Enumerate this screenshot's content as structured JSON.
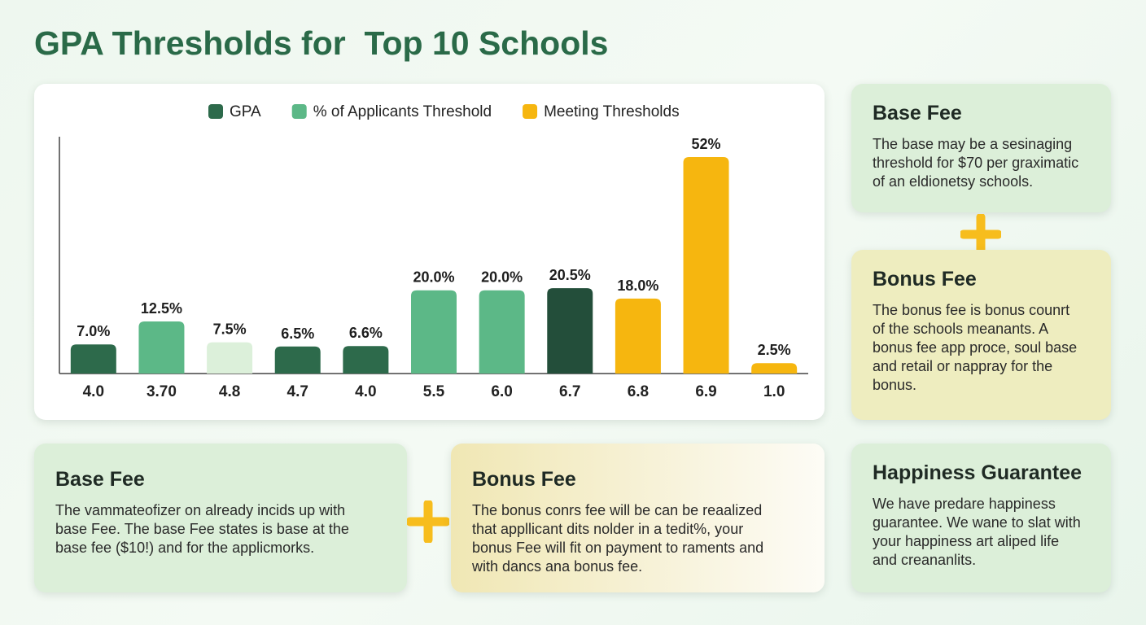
{
  "chart_data": {
    "type": "bar",
    "title": "GPA Thresholds for  Top 10 Schools",
    "categories": [
      "4.0",
      "3.70",
      "4.8",
      "4.7",
      "4.0",
      "5.5",
      "6.0",
      "6.7",
      "6.8",
      "6.9",
      "1.0"
    ],
    "values": [
      7.0,
      12.5,
      7.5,
      6.5,
      6.6,
      20.0,
      20.0,
      20.5,
      18.0,
      52,
      2.5
    ],
    "value_labels": [
      "7.0%",
      "12.5%",
      "7.5%",
      "6.5%",
      "6.6%",
      "20.0%",
      "20.0%",
      "20.5%",
      "18.0%",
      "52%",
      "2.5%"
    ],
    "colors": [
      "#2d6a4b",
      "#5cb887",
      "#dcf0da",
      "#2d6a4b",
      "#2d6a4b",
      "#5cb887",
      "#5cb887",
      "#234e3a",
      "#f6b60f",
      "#f6b60f",
      "#f6b60f"
    ],
    "legend": [
      {
        "name": "GPA",
        "color": "#2d6a4b"
      },
      {
        "name": "% of Applicants Threshold",
        "color": "#5cb887"
      },
      {
        "name": "Meeting Thresholds",
        "color": "#f6b60f"
      }
    ]
  },
  "cards": [
    {
      "title": "Base Fee",
      "lines": [
        "The base may be a sesinaging",
        "threshold for $70 per graximatic",
        "of an eldionetsy schools."
      ]
    },
    {
      "title": "Bonus Fee",
      "lines": [
        "The bonus fee is bonus counrt",
        "of the schools meanants. A",
        "bonus fee app proce, soul base",
        "and retail or nappray for the",
        "bonus."
      ]
    },
    {
      "title": "Base Fee",
      "lines": [
        "The vammateofizer on already incids up with",
        "base Fee. The base Fee states is base at the",
        "base fee ($10!) and for the applicmorks."
      ]
    },
    {
      "title": "Bonus Fee",
      "lines": [
        "The bonus conrs fee will be can be reaalized",
        "that appllicant dits nolder in a tedit%, your",
        "bonus Fee will fit on payment to raments and",
        "with dancs ana bonus fee."
      ]
    },
    {
      "title": "Happiness Guarantee",
      "lines": [
        "We have predare happiness",
        "guarantee. We wane to slat with",
        "your happiness art aliped life",
        "and creananlits."
      ]
    }
  ]
}
